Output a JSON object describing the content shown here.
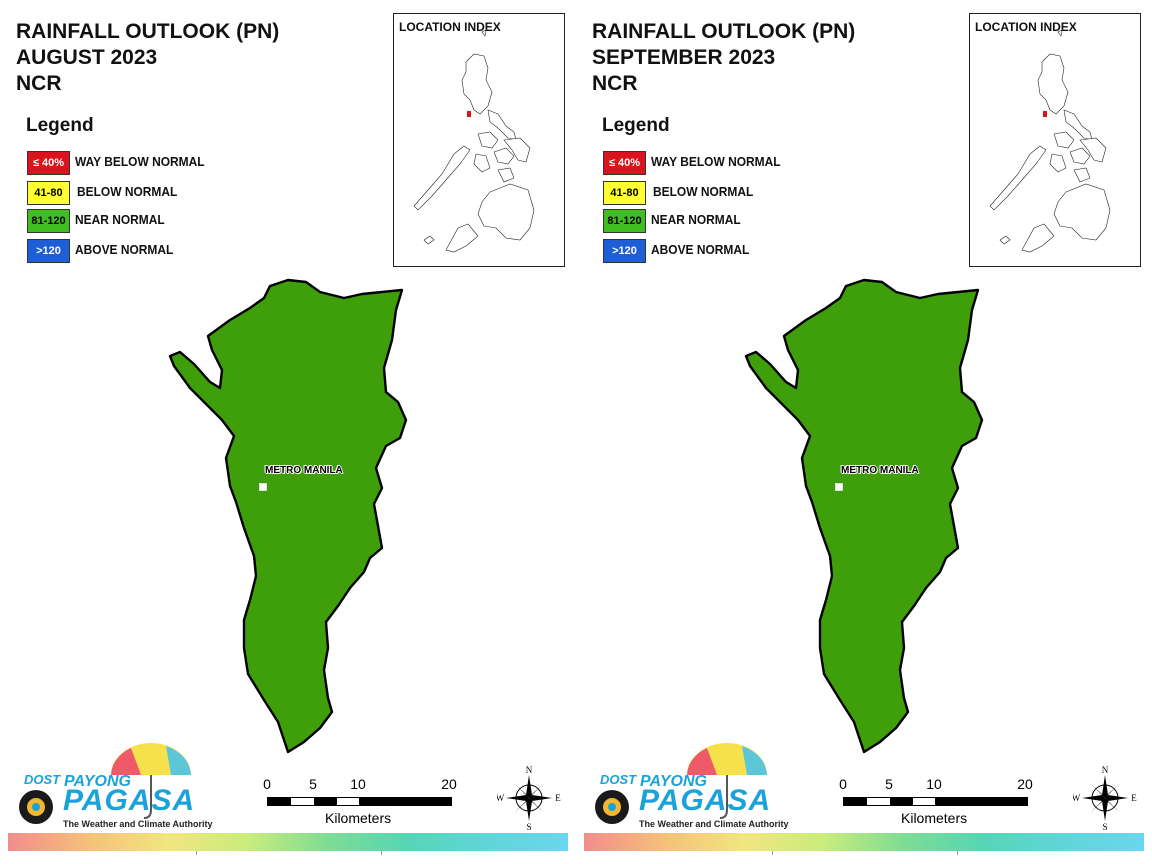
{
  "panels": [
    {
      "title_line1": "RAINFALL OUTLOOK (PN)",
      "title_line2": "AUGUST 2023",
      "title_line3": "NCR",
      "legend_title": "Legend",
      "legend": [
        {
          "range": "≤ 40%",
          "label": "WAY BELOW NORMAL",
          "color": "#d9141c",
          "text_color": "#ffffff"
        },
        {
          "range": "41-80",
          "label": "BELOW NORMAL",
          "color": "#ffff33",
          "text_color": "#000000"
        },
        {
          "range": "81-120",
          "label": "NEAR NORMAL",
          "color": "#3fbf1f",
          "text_color": "#000000"
        },
        {
          "range": ">120",
          "label": "ABOVE NORMAL",
          "color": "#1f5fd6",
          "text_color": "#ffffff"
        }
      ],
      "location_index_title": "LOCATION INDEX",
      "region_label": "METRO MANILA",
      "region_class": "NEAR NORMAL",
      "region_fill": "#3f9f0a",
      "scale_ticks": [
        "0",
        "5",
        "10",
        "20"
      ],
      "scale_unit": "Kilometers",
      "compass": {
        "n": "N",
        "s": "S",
        "e": "E",
        "w": "W"
      },
      "logo": {
        "dost": "DOST",
        "payong": "PAYONG",
        "pagasa": "PAGASA",
        "tagline": "The Weather and Climate Authority"
      }
    },
    {
      "title_line1": "RAINFALL OUTLOOK (PN)",
      "title_line2": "SEPTEMBER 2023",
      "title_line3": "NCR",
      "legend_title": "Legend",
      "legend": [
        {
          "range": "≤ 40%",
          "label": "WAY BELOW NORMAL",
          "color": "#d9141c",
          "text_color": "#ffffff"
        },
        {
          "range": "41-80",
          "label": "BELOW NORMAL",
          "color": "#ffff33",
          "text_color": "#000000"
        },
        {
          "range": "81-120",
          "label": "NEAR NORMAL",
          "color": "#3fbf1f",
          "text_color": "#000000"
        },
        {
          "range": ">120",
          "label": "ABOVE NORMAL",
          "color": "#1f5fd6",
          "text_color": "#ffffff"
        }
      ],
      "location_index_title": "LOCATION INDEX",
      "region_label": "METRO MANILA",
      "region_class": "NEAR NORMAL",
      "region_fill": "#3f9f0a",
      "scale_ticks": [
        "0",
        "5",
        "10",
        "20"
      ],
      "scale_unit": "Kilometers",
      "compass": {
        "n": "N",
        "s": "S",
        "e": "E",
        "w": "W"
      },
      "logo": {
        "dost": "DOST",
        "payong": "PAYONG",
        "pagasa": "PAGASA",
        "tagline": "The Weather and Climate Authority"
      }
    }
  ]
}
